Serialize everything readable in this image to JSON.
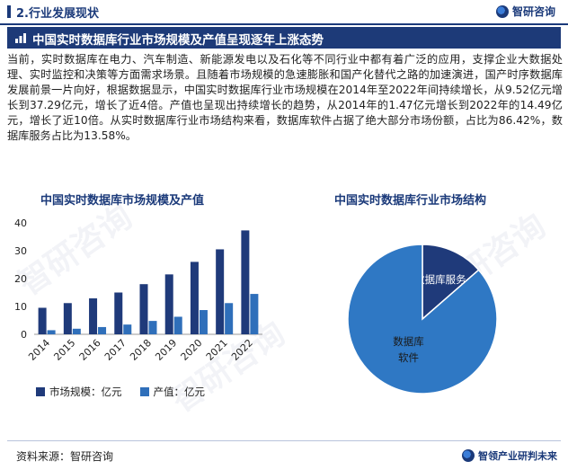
{
  "header": {
    "section_title": "2.行业发展现状",
    "brand_name": "智研咨询"
  },
  "headline": "中国实时数据库行业市场规模及产值呈现逐年上涨态势",
  "intro_text": "当前，实时数据库在电力、汽车制造、新能源发电以及石化等不同行业中都有着广泛的应用，支撑企业大数据处理、实时监控和决策等方面需求场景。且随着市场规模的急速膨胀和国产化替代之路的加速演进，国产时序数据库发展前景一片向好，根据数据显示，中国实时数据库行业市场规模在2014年至2022年间持续增长，从9.52亿元增长到37.29亿元，增长了近4倍。产值也呈现出持续增长的趋势，从2014年的1.47亿元增长到2022年的14.49亿元，增长了近10倍。从实时数据库行业市场结构来看，数据库软件占据了绝大部分市场份额，占比为86.42%，数据库服务占比为13.58%。",
  "watermark_text": "智研咨询",
  "footer": {
    "source": "资料来源：智研咨询",
    "brand_slogan": "智领产业研判未来"
  },
  "chart_data": [
    {
      "type": "bar",
      "title": "中国实时数据库市场规模及产值",
      "categories": [
        "2014",
        "2015",
        "2016",
        "2017",
        "2018",
        "2019",
        "2020",
        "2021",
        "2022"
      ],
      "series": [
        {
          "name": "市场规模：亿元",
          "color": "#1f3a7a",
          "values": [
            9.52,
            11.2,
            12.9,
            15.0,
            18.0,
            21.5,
            26.0,
            30.5,
            37.29
          ]
        },
        {
          "name": "产值：亿元",
          "color": "#2f6fba",
          "values": [
            1.47,
            2.0,
            2.6,
            3.5,
            4.8,
            6.3,
            8.7,
            11.2,
            14.49
          ]
        }
      ],
      "yticks": [
        0,
        10,
        20,
        30,
        40
      ],
      "ylim": [
        0,
        40
      ],
      "grid": false,
      "legend": "bottom"
    },
    {
      "type": "pie",
      "title": "中国实时数据库行业市场结构",
      "slices": [
        {
          "label": "数据库服务",
          "value": 13.58,
          "color": "#1f3a7a"
        },
        {
          "label": "数据库软件",
          "label_lines": [
            "数据库",
            "软件"
          ],
          "value": 86.42,
          "color": "#2f78c4"
        }
      ]
    }
  ]
}
